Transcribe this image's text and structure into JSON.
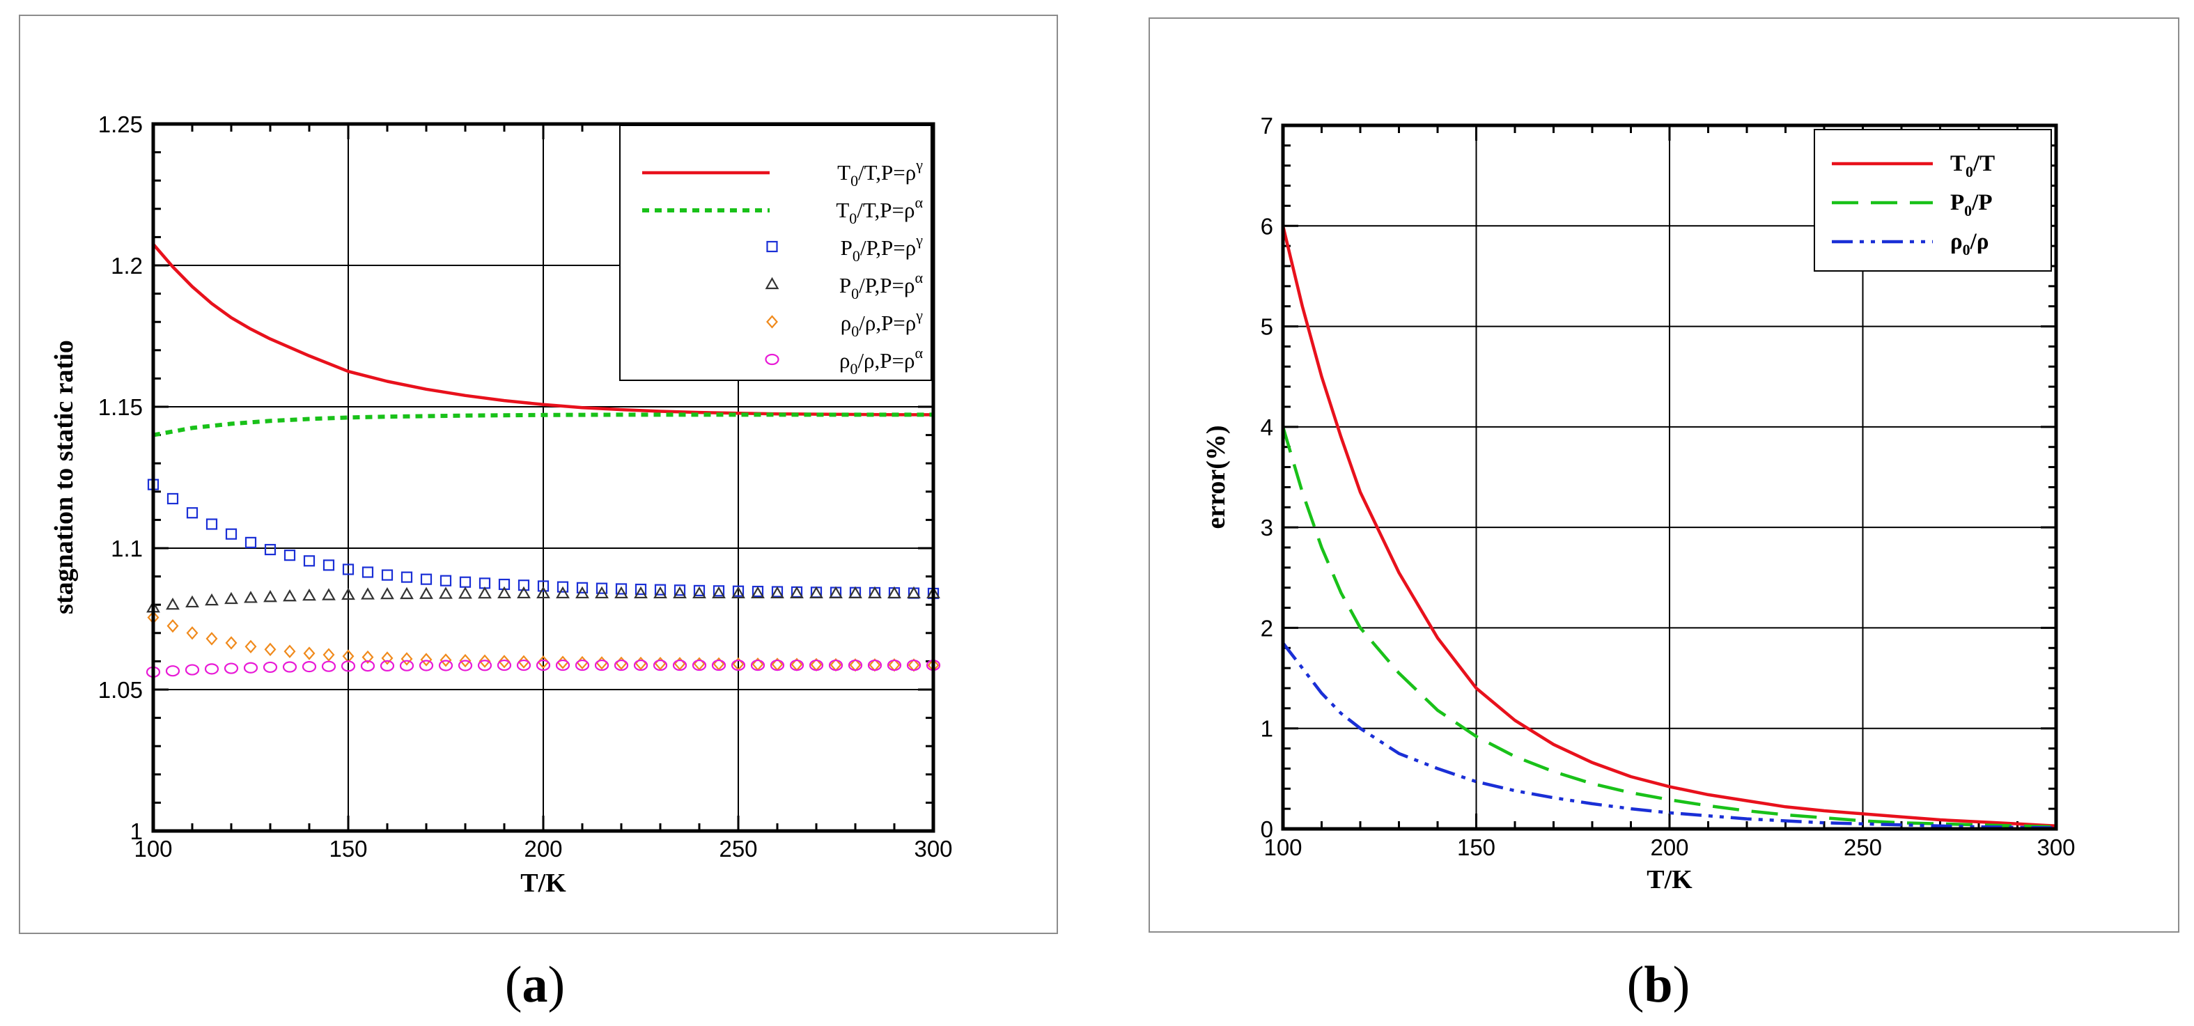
{
  "chart_data": [
    {
      "id": "a",
      "panel_label": "a",
      "type": "line",
      "xlabel": "T/K",
      "ylabel": "stagnation to static ratio",
      "xlim": [
        100,
        300
      ],
      "ylim": [
        1,
        1.25
      ],
      "xticks": [
        100,
        150,
        200,
        250,
        300
      ],
      "yticks": [
        1,
        1.05,
        1.1,
        1.15,
        1.2,
        1.25
      ],
      "ytick_labels": [
        "1",
        "1.05",
        "1.1",
        "1.15",
        "1.2",
        "1.25"
      ],
      "grid": true,
      "legend_position": "top-right",
      "series": [
        {
          "name": "T0/T, P=ρ^γ",
          "label_main": "T",
          "label_sub": "0",
          "label_rest": "/T,P=ρ",
          "label_sup": "γ",
          "color": "#e8111c",
          "style": "solid",
          "marker": "none",
          "x": [
            100,
            105,
            110,
            115,
            120,
            125,
            130,
            140,
            150,
            160,
            170,
            180,
            190,
            200,
            210,
            220,
            230,
            240,
            250,
            260,
            270,
            280,
            290,
            300
          ],
          "y": [
            1.2075,
            1.1995,
            1.1925,
            1.1865,
            1.1815,
            1.1775,
            1.174,
            1.168,
            1.1625,
            1.159,
            1.1562,
            1.154,
            1.1522,
            1.1508,
            1.1497,
            1.149,
            1.1484,
            1.148,
            1.1477,
            1.1475,
            1.1474,
            1.1473,
            1.1472,
            1.1472
          ]
        },
        {
          "name": "T0/T, P=ρ^α",
          "label_main": "T",
          "label_sub": "0",
          "label_rest": "/T,P=ρ",
          "label_sup": "α",
          "color": "#19c119",
          "style": "dotted",
          "marker": "none",
          "x": [
            100,
            110,
            120,
            130,
            140,
            150,
            160,
            180,
            200,
            220,
            240,
            260,
            280,
            300
          ],
          "y": [
            1.14,
            1.1425,
            1.144,
            1.145,
            1.1457,
            1.1462,
            1.1465,
            1.1469,
            1.1471,
            1.1472,
            1.1472,
            1.1472,
            1.1472,
            1.1472
          ]
        },
        {
          "name": "P0/P, P=ρ^γ",
          "label_main": "P",
          "label_sub": "0",
          "label_rest": "/P,P=ρ",
          "label_sup": "γ",
          "color": "#1a2fd6",
          "style": "none",
          "marker": "square",
          "x": [
            100,
            105,
            110,
            115,
            120,
            125,
            130,
            140,
            150,
            160,
            170,
            180,
            190,
            200,
            210,
            220,
            230,
            240,
            250,
            260,
            270,
            280,
            290,
            300
          ],
          "y": [
            1.1225,
            1.1175,
            1.1125,
            1.1085,
            1.105,
            1.102,
            1.0995,
            1.0955,
            1.0925,
            1.0905,
            1.089,
            1.088,
            1.0872,
            1.0866,
            1.086,
            1.0856,
            1.0853,
            1.085,
            1.0848,
            1.0846,
            1.0844,
            1.0843,
            1.0842,
            1.084
          ]
        },
        {
          "name": "P0/P, P=ρ^α",
          "label_main": "P",
          "label_sub": "0",
          "label_rest": "/P,P=ρ",
          "label_sup": "α",
          "color": "#333333",
          "style": "none",
          "marker": "triangle",
          "x": [
            100,
            105,
            110,
            115,
            120,
            125,
            130,
            140,
            150,
            160,
            170,
            180,
            190,
            200,
            210,
            220,
            230,
            240,
            250,
            260,
            270,
            280,
            290,
            300
          ],
          "y": [
            1.079,
            1.08,
            1.0808,
            1.0815,
            1.082,
            1.0824,
            1.0827,
            1.0832,
            1.0835,
            1.0837,
            1.0838,
            1.0839,
            1.084,
            1.084,
            1.084,
            1.084,
            1.084,
            1.084,
            1.084,
            1.084,
            1.084,
            1.084,
            1.084,
            1.084
          ]
        },
        {
          "name": "ρ0/ρ, P=ρ^γ",
          "label_main": "ρ",
          "label_sub": "0",
          "label_rest": "/ρ,P=ρ",
          "label_sup": "γ",
          "color": "#f08a1c",
          "style": "none",
          "marker": "diamond",
          "x": [
            100,
            105,
            110,
            115,
            120,
            125,
            130,
            140,
            150,
            160,
            170,
            180,
            190,
            200,
            210,
            220,
            230,
            240,
            250,
            260,
            270,
            280,
            290,
            300
          ],
          "y": [
            1.0755,
            1.0725,
            1.07,
            1.068,
            1.0665,
            1.0652,
            1.0642,
            1.0628,
            1.0618,
            1.0611,
            1.0606,
            1.0602,
            1.0599,
            1.0597,
            1.0595,
            1.0593,
            1.0592,
            1.0591,
            1.059,
            1.0589,
            1.0588,
            1.0587,
            1.0587,
            1.0586
          ]
        },
        {
          "name": "ρ0/ρ, P=ρ^α",
          "label_main": "ρ",
          "label_sub": "0",
          "label_rest": "/ρ,P=ρ",
          "label_sup": "α",
          "color": "#e81ad6",
          "style": "none",
          "marker": "circle",
          "x": [
            100,
            105,
            110,
            115,
            120,
            125,
            130,
            140,
            150,
            160,
            170,
            180,
            190,
            200,
            210,
            220,
            230,
            240,
            250,
            260,
            270,
            280,
            290,
            300
          ],
          "y": [
            1.0562,
            1.0566,
            1.057,
            1.0573,
            1.0575,
            1.0577,
            1.0579,
            1.0581,
            1.0583,
            1.0584,
            1.0585,
            1.0585,
            1.0586,
            1.0586,
            1.0586,
            1.0586,
            1.0586,
            1.0586,
            1.0586,
            1.0586,
            1.0586,
            1.0586,
            1.0586,
            1.0586
          ]
        }
      ]
    },
    {
      "id": "b",
      "panel_label": "b",
      "type": "line",
      "xlabel": "T/K",
      "ylabel": "error(%)",
      "xlim": [
        100,
        300
      ],
      "ylim": [
        0,
        7
      ],
      "xticks": [
        100,
        150,
        200,
        250,
        300
      ],
      "yticks": [
        0,
        1,
        2,
        3,
        4,
        5,
        6,
        7
      ],
      "ytick_labels": [
        "0",
        "1",
        "2",
        "3",
        "4",
        "5",
        "6",
        "7"
      ],
      "grid": true,
      "legend_position": "top-right",
      "series": [
        {
          "name": "T0/T",
          "label_main": "T",
          "label_sub": "0",
          "label_rest": "/T",
          "label_sup": "",
          "color": "#e8111c",
          "style": "solid",
          "marker": "none",
          "x": [
            100,
            105,
            110,
            115,
            120,
            130,
            140,
            150,
            160,
            170,
            180,
            190,
            200,
            210,
            220,
            230,
            240,
            250,
            260,
            270,
            280,
            290,
            300
          ],
          "y": [
            6.0,
            5.2,
            4.5,
            3.9,
            3.35,
            2.55,
            1.9,
            1.4,
            1.08,
            0.84,
            0.66,
            0.52,
            0.42,
            0.34,
            0.28,
            0.22,
            0.18,
            0.15,
            0.12,
            0.09,
            0.07,
            0.05,
            0.03
          ]
        },
        {
          "name": "P0/P",
          "label_main": "P",
          "label_sub": "0",
          "label_rest": "/P",
          "label_sup": "",
          "color": "#19c119",
          "style": "dashed",
          "marker": "none",
          "x": [
            100,
            105,
            110,
            115,
            120,
            130,
            140,
            150,
            160,
            170,
            180,
            190,
            200,
            210,
            220,
            230,
            240,
            250,
            260,
            270,
            280,
            290,
            300
          ],
          "y": [
            4.0,
            3.35,
            2.8,
            2.35,
            2.0,
            1.55,
            1.18,
            0.92,
            0.72,
            0.57,
            0.45,
            0.36,
            0.29,
            0.23,
            0.18,
            0.14,
            0.11,
            0.08,
            0.06,
            0.05,
            0.04,
            0.03,
            0.02
          ]
        },
        {
          "name": "ρ0/ρ",
          "label_main": "ρ",
          "label_sub": "0",
          "label_rest": "/ρ",
          "label_sup": "",
          "color": "#1a2fd6",
          "style": "dashdotdot",
          "marker": "none",
          "x": [
            100,
            105,
            110,
            115,
            120,
            130,
            140,
            150,
            160,
            170,
            180,
            190,
            200,
            210,
            220,
            230,
            240,
            250,
            260,
            270,
            280,
            290,
            300
          ],
          "y": [
            1.85,
            1.6,
            1.35,
            1.15,
            1.0,
            0.75,
            0.6,
            0.47,
            0.38,
            0.31,
            0.25,
            0.2,
            0.16,
            0.13,
            0.1,
            0.08,
            0.06,
            0.05,
            0.04,
            0.03,
            0.02,
            0.015,
            0.01
          ]
        }
      ]
    }
  ]
}
